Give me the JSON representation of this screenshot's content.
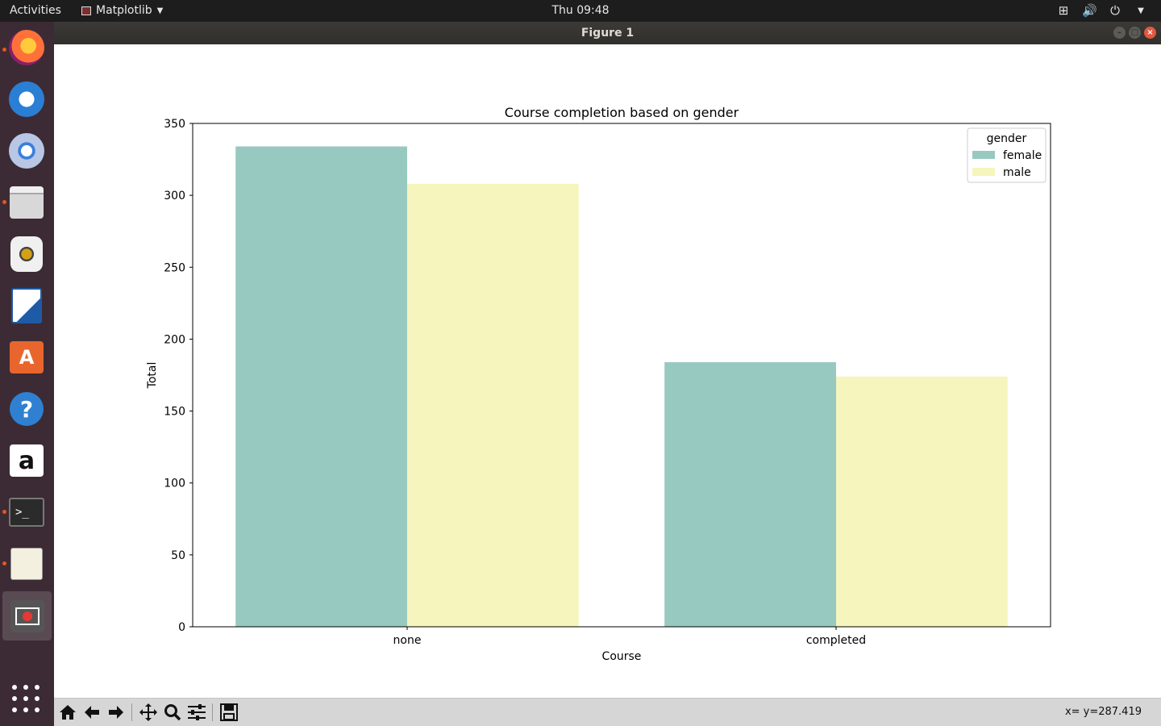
{
  "topbar": {
    "activities": "Activities",
    "app_name": "Matplotlib",
    "clock": "Thu 09:48",
    "tray_icons": [
      "network-icon",
      "volume-icon",
      "power-icon"
    ]
  },
  "dock": {
    "items": [
      "firefox",
      "thunderbird",
      "chromium",
      "files",
      "rhythmbox",
      "libreoffice-writer",
      "ubuntu-software",
      "help",
      "amazon",
      "terminal",
      "text-editor",
      "matplotlib-figure"
    ],
    "store_glyph": "A",
    "help_glyph": "?",
    "amazon_glyph": "a",
    "terminal_glyph": ">_"
  },
  "window": {
    "title": "Figure 1"
  },
  "chart_data": {
    "type": "bar",
    "title": "Course completion based on gender",
    "xlabel": "Course",
    "ylabel": "Total",
    "categories": [
      "none",
      "completed"
    ],
    "series": [
      {
        "name": "female",
        "values": [
          334,
          184
        ],
        "color": "#98c9c1"
      },
      {
        "name": "male",
        "values": [
          308,
          174
        ],
        "color": "#f5f5bd"
      }
    ],
    "ylim": [
      0,
      350
    ],
    "yticks": [
      0,
      50,
      100,
      150,
      200,
      250,
      300,
      350
    ],
    "legend": {
      "title": "gender",
      "placement": "top-right"
    },
    "grid": false
  },
  "toolbar": {
    "buttons": [
      "home-icon",
      "back-icon",
      "forward-icon",
      "pan-icon",
      "zoom-icon",
      "configure-subplots-icon",
      "save-icon"
    ],
    "coords": "x= y=287.419"
  }
}
